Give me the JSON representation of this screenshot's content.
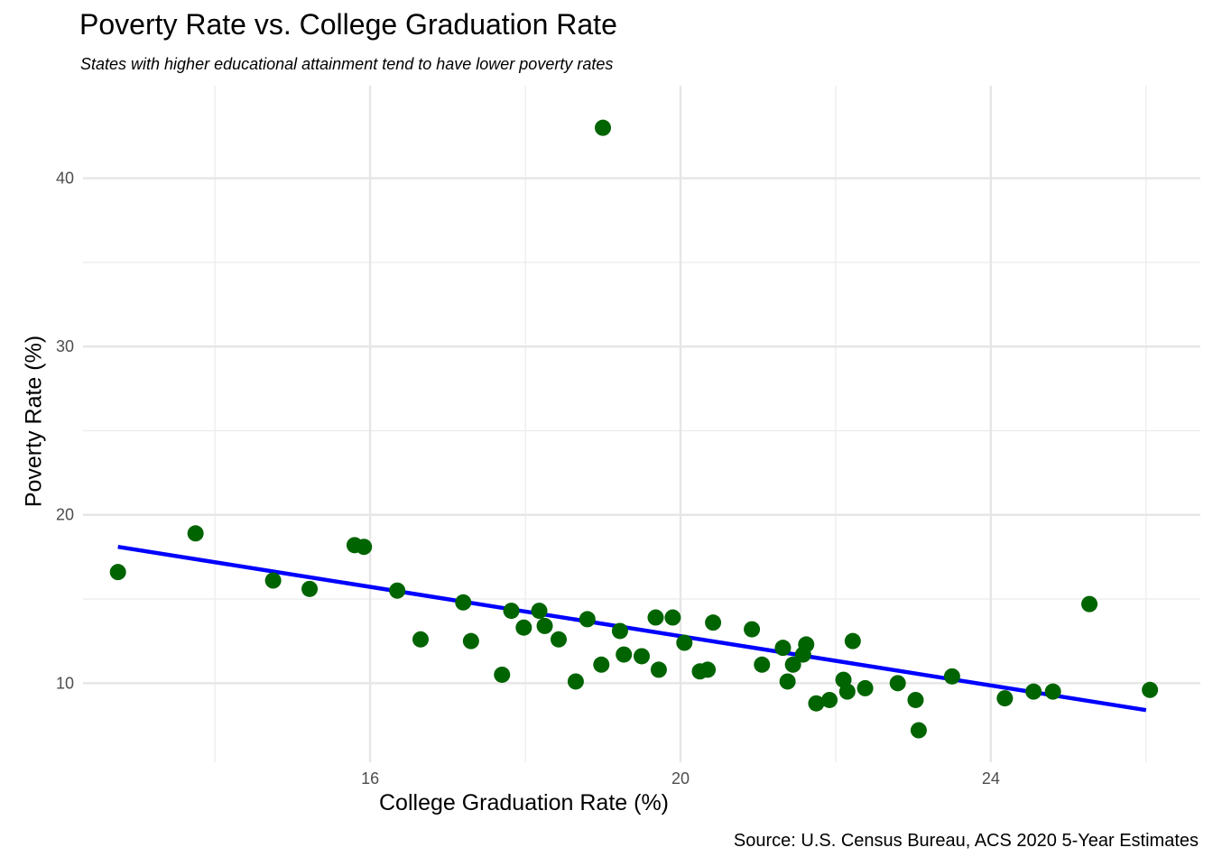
{
  "chart_data": {
    "type": "scatter",
    "title": "Poverty Rate vs. College Graduation Rate",
    "subtitle": "States with higher educational attainment tend to have lower poverty rates",
    "xlabel": "College Graduation Rate (%)",
    "ylabel": "Poverty Rate (%)",
    "caption": "Source: U.S. Census Bureau, ACS 2020 5-Year Estimates",
    "xlim": [
      12.3,
      26.7
    ],
    "ylim": [
      5.3,
      45.5
    ],
    "x_ticks": [
      16,
      20,
      24
    ],
    "y_ticks": [
      10,
      20,
      30,
      40
    ],
    "x_minor_ticks": [
      14,
      18,
      22,
      26
    ],
    "y_minor_ticks": [
      15,
      25,
      35
    ],
    "grid": true,
    "point_color": "#006400",
    "trend_line": {
      "color": "#0000ff",
      "x": [
        12.75,
        26.0
      ],
      "y": [
        18.1,
        8.4
      ]
    },
    "points": [
      {
        "x": 12.75,
        "y": 16.6
      },
      {
        "x": 13.75,
        "y": 18.9
      },
      {
        "x": 14.75,
        "y": 16.1
      },
      {
        "x": 15.22,
        "y": 15.6
      },
      {
        "x": 15.8,
        "y": 18.2
      },
      {
        "x": 15.92,
        "y": 18.1
      },
      {
        "x": 16.35,
        "y": 15.5
      },
      {
        "x": 16.65,
        "y": 12.6
      },
      {
        "x": 17.2,
        "y": 14.8
      },
      {
        "x": 17.3,
        "y": 12.5
      },
      {
        "x": 17.7,
        "y": 10.5
      },
      {
        "x": 17.82,
        "y": 14.3
      },
      {
        "x": 17.98,
        "y": 13.3
      },
      {
        "x": 18.18,
        "y": 14.3
      },
      {
        "x": 18.25,
        "y": 13.4
      },
      {
        "x": 18.43,
        "y": 12.6
      },
      {
        "x": 18.65,
        "y": 10.1
      },
      {
        "x": 18.8,
        "y": 13.8
      },
      {
        "x": 18.98,
        "y": 11.1
      },
      {
        "x": 19.0,
        "y": 43.0
      },
      {
        "x": 19.22,
        "y": 13.1
      },
      {
        "x": 19.27,
        "y": 11.7
      },
      {
        "x": 19.5,
        "y": 11.6
      },
      {
        "x": 19.68,
        "y": 13.9
      },
      {
        "x": 19.72,
        "y": 10.8
      },
      {
        "x": 19.9,
        "y": 13.9
      },
      {
        "x": 20.05,
        "y": 12.4
      },
      {
        "x": 20.25,
        "y": 10.7
      },
      {
        "x": 20.35,
        "y": 10.8
      },
      {
        "x": 20.42,
        "y": 13.6
      },
      {
        "x": 20.92,
        "y": 13.2
      },
      {
        "x": 21.05,
        "y": 11.1
      },
      {
        "x": 21.32,
        "y": 12.1
      },
      {
        "x": 21.38,
        "y": 10.1
      },
      {
        "x": 21.45,
        "y": 11.1
      },
      {
        "x": 21.58,
        "y": 11.7
      },
      {
        "x": 21.62,
        "y": 12.3
      },
      {
        "x": 21.75,
        "y": 8.8
      },
      {
        "x": 21.92,
        "y": 9.0
      },
      {
        "x": 22.1,
        "y": 10.2
      },
      {
        "x": 22.15,
        "y": 9.5
      },
      {
        "x": 22.22,
        "y": 12.5
      },
      {
        "x": 22.38,
        "y": 9.7
      },
      {
        "x": 22.8,
        "y": 10.0
      },
      {
        "x": 23.03,
        "y": 9.0
      },
      {
        "x": 23.07,
        "y": 7.2
      },
      {
        "x": 23.5,
        "y": 10.4
      },
      {
        "x": 24.18,
        "y": 9.1
      },
      {
        "x": 24.55,
        "y": 9.5
      },
      {
        "x": 24.8,
        "y": 9.5
      },
      {
        "x": 25.27,
        "y": 14.7
      },
      {
        "x": 26.05,
        "y": 9.6
      }
    ]
  }
}
